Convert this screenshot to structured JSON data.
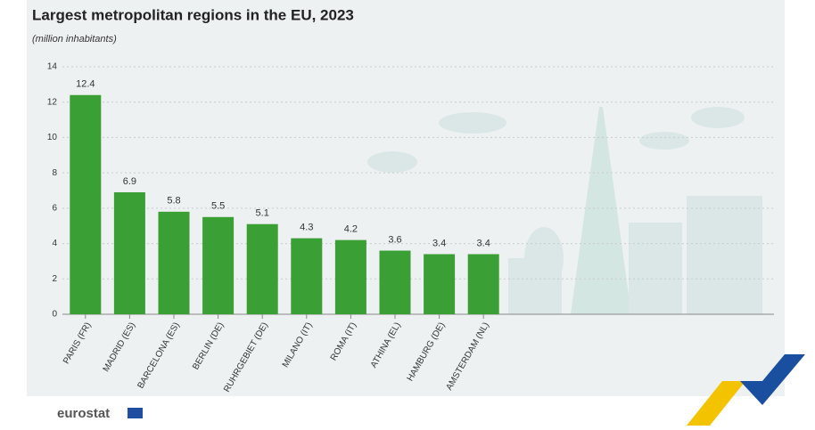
{
  "chart_data": {
    "type": "bar",
    "title": "Largest metropolitan regions in the EU, 2023",
    "subtitle": "(million inhabitants)",
    "categories": [
      "PARIS (FR)",
      "MADRID (ES)",
      "BARCELONA (ES)",
      "BERLIN (DE)",
      "RUHRGEBIET (DE)",
      "MILANO (IT)",
      "ROMA (IT)",
      "ATHINA (EL)",
      "HAMBURG (DE)",
      "AMSTERDAM (NL)"
    ],
    "values": [
      12.4,
      6.9,
      5.8,
      5.5,
      5.1,
      4.3,
      4.2,
      3.6,
      3.4,
      3.4
    ],
    "color": "#3a9f35",
    "ylim": [
      0,
      14
    ],
    "yticks": [
      0,
      2,
      4,
      6,
      8,
      10,
      12,
      14
    ],
    "grid": true,
    "source_logo": "eurostat"
  }
}
